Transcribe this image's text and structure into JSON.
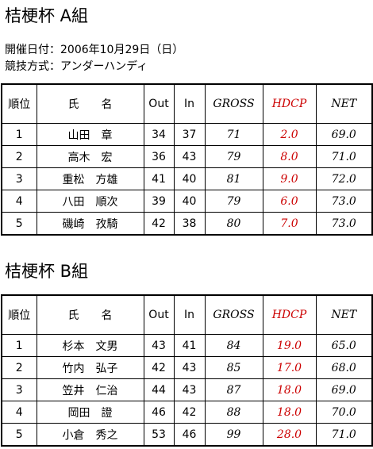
{
  "sections": [
    {
      "title": "桔梗杯 A組",
      "info": [
        "開催日付：2006年10月29日（日）",
        "競技方式：アンダーハンディ"
      ],
      "table": {
        "header": [
          "順位",
          "氏　　名",
          "Out",
          "In",
          "GROSS",
          "HDCP",
          "NET"
        ],
        "rows": [
          [
            "1",
            "山田　章",
            "34",
            "37",
            "71",
            "2.0",
            "69.0"
          ],
          [
            "2",
            "高木　宏",
            "36",
            "43",
            "79",
            "8.0",
            "71.0"
          ],
          [
            "3",
            "重松　方雄",
            "41",
            "40",
            "81",
            "9.0",
            "72.0"
          ],
          [
            "4",
            "八田　順次",
            "39",
            "40",
            "79",
            "6.0",
            "73.0"
          ],
          [
            "5",
            "磯崎　孜騎",
            "42",
            "38",
            "80",
            "7.0",
            "73.0"
          ]
        ]
      }
    },
    {
      "title": "桔梗杯 B組",
      "info": [],
      "table": {
        "header": [
          "順位",
          "氏　　名",
          "Out",
          "In",
          "GROSS",
          "HDCP",
          "NET"
        ],
        "rows": [
          [
            "1",
            "杉本　文男",
            "43",
            "41",
            "84",
            "19.0",
            "65.0"
          ],
          [
            "2",
            "竹内　弘子",
            "42",
            "43",
            "85",
            "17.0",
            "68.0"
          ],
          [
            "3",
            "笠井　仁治",
            "44",
            "43",
            "87",
            "18.0",
            "69.0"
          ],
          [
            "4",
            "岡田　證",
            "46",
            "42",
            "88",
            "18.0",
            "70.0"
          ],
          [
            "5",
            "小倉　秀之",
            "53",
            "46",
            "99",
            "28.0",
            "71.0"
          ]
        ]
      }
    }
  ]
}
